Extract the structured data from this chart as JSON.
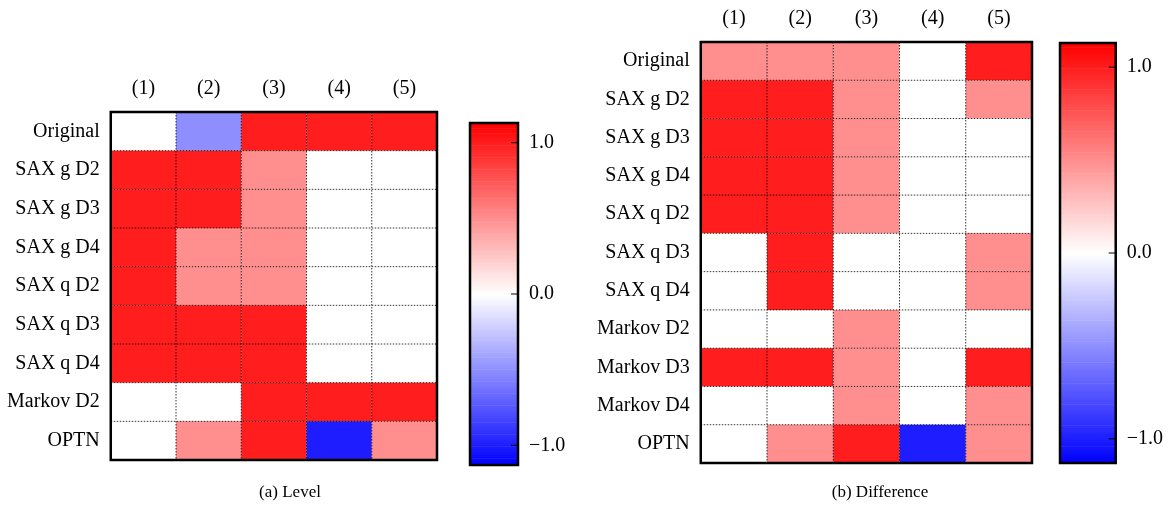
{
  "chart_data": [
    {
      "type": "heatmap",
      "annotations": [
        "(a) Level"
      ],
      "grid": true,
      "categories": [
        "(1)",
        "(2)",
        "(3)",
        "(4)",
        "(5)"
      ],
      "y_categories": [
        "Original",
        "SAX g D2",
        "SAX g D3",
        "SAX g D4",
        "SAX q D2",
        "SAX q D3",
        "SAX q D4",
        "Markov D2",
        "OPTN"
      ],
      "cells": [
        [
          0,
          -0.5,
          1,
          1,
          1
        ],
        [
          1,
          1,
          0.5,
          0,
          0
        ],
        [
          1,
          1,
          0.5,
          0,
          0
        ],
        [
          1,
          0.5,
          0.5,
          0,
          0
        ],
        [
          1,
          0.5,
          0.5,
          0,
          0
        ],
        [
          1,
          1,
          1,
          0,
          0
        ],
        [
          1,
          1,
          1,
          0,
          0
        ],
        [
          0,
          0,
          1,
          1,
          1
        ],
        [
          0,
          0.5,
          1,
          -1,
          0.5
        ]
      ],
      "clim": [
        -1.13,
        1.13
      ],
      "cticks": [
        {
          "value": -1,
          "label": "−1.0"
        },
        {
          "value": 0,
          "label": "0.0"
        },
        {
          "value": 1,
          "label": "1.0"
        }
      ]
    },
    {
      "type": "heatmap",
      "annotations": [
        "(b) Difference"
      ],
      "grid": true,
      "categories": [
        "(1)",
        "(2)",
        "(3)",
        "(4)",
        "(5)"
      ],
      "y_categories": [
        "Original",
        "SAX g D2",
        "SAX g D3",
        "SAX g D4",
        "SAX q D2",
        "SAX q D3",
        "SAX q D4",
        "Markov D2",
        "Markov D3",
        "Markov D4",
        "OPTN"
      ],
      "cells": [
        [
          0.5,
          0.5,
          0.5,
          0,
          1
        ],
        [
          1,
          1,
          0.5,
          0,
          0.5
        ],
        [
          1,
          1,
          0.5,
          0,
          0
        ],
        [
          1,
          1,
          0.5,
          0,
          0
        ],
        [
          1,
          1,
          0.5,
          0,
          0
        ],
        [
          0,
          1,
          0,
          0,
          0.5
        ],
        [
          0,
          1,
          0,
          0,
          0.5
        ],
        [
          0,
          0,
          0.5,
          0,
          0
        ],
        [
          1,
          1,
          0.5,
          0,
          1
        ],
        [
          0,
          0,
          0.5,
          0,
          0.5
        ],
        [
          0,
          0.5,
          1,
          -1,
          0.5
        ]
      ],
      "clim": [
        -1.13,
        1.13
      ],
      "cticks": [
        {
          "value": -1,
          "label": "−1.0"
        },
        {
          "value": 0,
          "label": "0.0"
        },
        {
          "value": 1,
          "label": "1.0"
        }
      ]
    }
  ]
}
